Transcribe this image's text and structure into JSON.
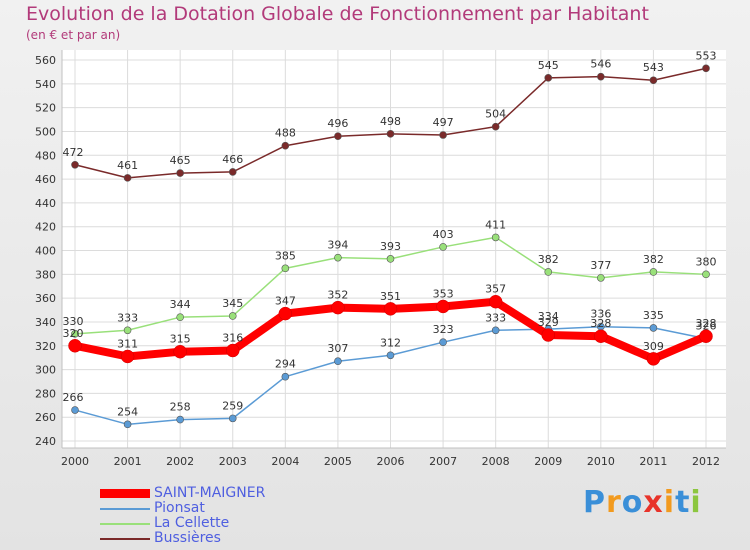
{
  "chart_data": {
    "type": "line",
    "title": "Evolution de la Dotation Globale de Fonctionnement par Habitant",
    "subtitle": "(en € et par an)",
    "x": [
      "2000",
      "2001",
      "2002",
      "2003",
      "2004",
      "2005",
      "2006",
      "2007",
      "2008",
      "2009",
      "2010",
      "2011",
      "2012"
    ],
    "ylim": [
      240,
      560
    ],
    "yticks": [
      240,
      260,
      280,
      300,
      320,
      340,
      360,
      380,
      400,
      420,
      440,
      460,
      480,
      500,
      520,
      540,
      560
    ],
    "grid": true,
    "legend_position": "bottom-left",
    "series": [
      {
        "name": "SAINT-MAIGNER",
        "color": "#ff0000",
        "values": [
          320,
          311,
          315,
          316,
          347,
          352,
          351,
          353,
          357,
          329,
          328,
          309,
          328
        ]
      },
      {
        "name": "Pionsat",
        "color": "#5b9bd5",
        "values": [
          266,
          254,
          258,
          259,
          294,
          307,
          312,
          323,
          333,
          334,
          336,
          335,
          326
        ]
      },
      {
        "name": "La Cellette",
        "color": "#99e07a",
        "values": [
          330,
          333,
          344,
          345,
          385,
          394,
          393,
          403,
          411,
          382,
          377,
          382,
          380
        ]
      },
      {
        "name": "Bussières",
        "color": "#7a2a2a",
        "values": [
          472,
          461,
          465,
          466,
          488,
          496,
          498,
          497,
          504,
          545,
          546,
          543,
          553
        ]
      }
    ]
  },
  "logo": {
    "letters": [
      "P",
      "r",
      "o",
      "x",
      "i",
      "t",
      "i"
    ],
    "colors": [
      "#3a8fd8",
      "#f29a1e",
      "#3a8fd8",
      "#e8332a",
      "#f29a1e",
      "#3a8fd8",
      "#8cc63f"
    ]
  }
}
